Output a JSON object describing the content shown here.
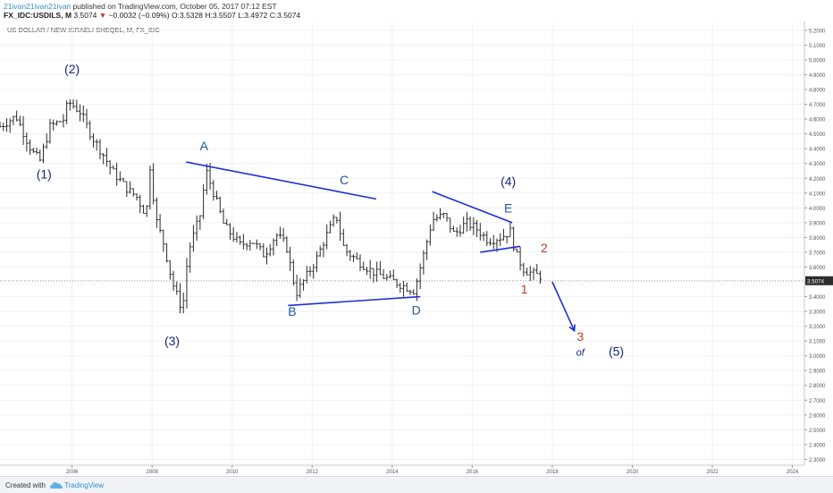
{
  "header": {
    "author": "21ivan21ivan21ivan",
    "published": " published on TradingView.com, October 05, 2017 07:12 EST",
    "symbol": "FX_IDC:USDILS, M",
    "last": "3.5074",
    "change_arrow": "▼",
    "change": "−0.0032 (−0.09%)",
    "ohlc_text": "O:3.5328 H:3.5507 L:3.4972 C:3.5074"
  },
  "footer": {
    "created_with": "Created with",
    "brand": "TradingView",
    "brand_icon": "tradingview-cloud-icon"
  },
  "chart_data": {
    "type": "ohlc",
    "title": "US DOLLAR / NEW ISRAELI SHEQEL, M, FX_IDC",
    "interval": "M",
    "x_range": [
      2004.2,
      2024.3
    ],
    "y_range": [
      2.26,
      5.26
    ],
    "x_ticks": [
      "2006",
      "2008",
      "2010",
      "2012",
      "2014",
      "2016",
      "2018",
      "2020",
      "2022",
      "2024"
    ],
    "y_ticks": [
      "5.2000",
      "5.1000",
      "5.0000",
      "4.9000",
      "4.8000",
      "4.7000",
      "4.6000",
      "4.5000",
      "4.4000",
      "4.3000",
      "4.2000",
      "4.1000",
      "4.0000",
      "3.9000",
      "3.8000",
      "3.7000",
      "3.6000",
      "3.5000",
      "3.4000",
      "3.3000",
      "3.2000",
      "3.1000",
      "3.0000",
      "2.9000",
      "2.8000",
      "2.7000",
      "2.6000",
      "2.5000",
      "2.4000",
      "2.3000"
    ],
    "last_price": 3.5074,
    "last_price_label": "3.5074",
    "price_path": [
      [
        2004.2,
        4.55
      ],
      [
        2004.6,
        4.62
      ],
      [
        2005.0,
        4.38
      ],
      [
        2005.2,
        4.32
      ],
      [
        2005.45,
        4.55
      ],
      [
        2005.8,
        4.6
      ],
      [
        2005.9,
        4.72
      ],
      [
        2006.2,
        4.65
      ],
      [
        2006.5,
        4.48
      ],
      [
        2006.8,
        4.35
      ],
      [
        2007.0,
        4.25
      ],
      [
        2007.4,
        4.12
      ],
      [
        2007.6,
        4.08
      ],
      [
        2007.85,
        3.95
      ],
      [
        2007.95,
        4.28
      ],
      [
        2008.1,
        3.92
      ],
      [
        2008.3,
        3.75
      ],
      [
        2008.5,
        3.5
      ],
      [
        2008.7,
        3.35
      ],
      [
        2008.75,
        3.28
      ],
      [
        2008.9,
        3.7
      ],
      [
        2009.2,
        3.95
      ],
      [
        2009.35,
        4.25
      ],
      [
        2009.6,
        4.05
      ],
      [
        2009.8,
        3.88
      ],
      [
        2010.2,
        3.75
      ],
      [
        2010.5,
        3.78
      ],
      [
        2010.8,
        3.68
      ],
      [
        2011.1,
        3.82
      ],
      [
        2011.35,
        3.75
      ],
      [
        2011.5,
        3.55
      ],
      [
        2011.6,
        3.42
      ],
      [
        2012.1,
        3.65
      ],
      [
        2012.3,
        3.78
      ],
      [
        2012.6,
        3.95
      ],
      [
        2012.8,
        3.72
      ],
      [
        2013.1,
        3.65
      ],
      [
        2013.5,
        3.57
      ],
      [
        2013.9,
        3.52
      ],
      [
        2014.3,
        3.47
      ],
      [
        2014.55,
        3.44
      ],
      [
        2014.8,
        3.7
      ],
      [
        2015.0,
        3.92
      ],
      [
        2015.3,
        3.95
      ],
      [
        2015.55,
        3.82
      ],
      [
        2015.85,
        3.9
      ],
      [
        2016.1,
        3.86
      ],
      [
        2016.4,
        3.78
      ],
      [
        2016.7,
        3.8
      ],
      [
        2016.95,
        3.84
      ],
      [
        2017.1,
        3.68
      ],
      [
        2017.3,
        3.58
      ],
      [
        2017.55,
        3.55
      ],
      [
        2017.7,
        3.54
      ],
      [
        2017.76,
        3.5074
      ]
    ],
    "annotations": [
      {
        "text": "(1)",
        "x": 2005.3,
        "y": 4.2,
        "color": "#1a237e"
      },
      {
        "text": "(2)",
        "x": 2006.0,
        "y": 4.91,
        "color": "#1a237e"
      },
      {
        "text": "(3)",
        "x": 2008.5,
        "y": 3.07,
        "color": "#1a237e"
      },
      {
        "text": "A",
        "x": 2009.3,
        "y": 4.39,
        "color": "#1e5aa8"
      },
      {
        "text": "B",
        "x": 2011.5,
        "y": 3.27,
        "color": "#1e5aa8"
      },
      {
        "text": "C",
        "x": 2012.8,
        "y": 4.16,
        "color": "#1e5aa8"
      },
      {
        "text": "D",
        "x": 2014.6,
        "y": 3.28,
        "color": "#1e5aa8"
      },
      {
        "text": "E",
        "x": 2016.9,
        "y": 3.97,
        "color": "#1e5aa8"
      },
      {
        "text": "(4)",
        "x": 2016.9,
        "y": 4.15,
        "color": "#1a237e"
      },
      {
        "text": "1",
        "x": 2017.3,
        "y": 3.42,
        "color": "#c0392b"
      },
      {
        "text": "2",
        "x": 2017.8,
        "y": 3.7,
        "color": "#c0392b"
      },
      {
        "text": "3",
        "x": 2018.7,
        "y": 3.1,
        "color": "#c0392b"
      },
      {
        "text": "of",
        "x": 2018.7,
        "y": 3.0,
        "color": "#1a237e",
        "size": 11,
        "italic": true
      },
      {
        "text": "(5)",
        "x": 2019.6,
        "y": 3.0,
        "color": "#1a237e"
      }
    ],
    "trendlines": [
      {
        "from": [
          2008.85,
          4.31
        ],
        "to": [
          2013.6,
          4.06
        ],
        "color": "#1f2fd6"
      },
      {
        "from": [
          2011.4,
          3.34
        ],
        "to": [
          2014.7,
          3.4
        ],
        "color": "#1f2fd6"
      },
      {
        "from": [
          2015.0,
          4.11
        ],
        "to": [
          2017.0,
          3.9
        ],
        "color": "#1f2fd6"
      },
      {
        "from": [
          2016.2,
          3.7
        ],
        "to": [
          2017.2,
          3.74
        ],
        "color": "#1f2fd6"
      }
    ],
    "arrow": {
      "from": [
        2018.0,
        3.5
      ],
      "to": [
        2018.55,
        3.17
      ],
      "color": "#1f2fd6"
    }
  }
}
